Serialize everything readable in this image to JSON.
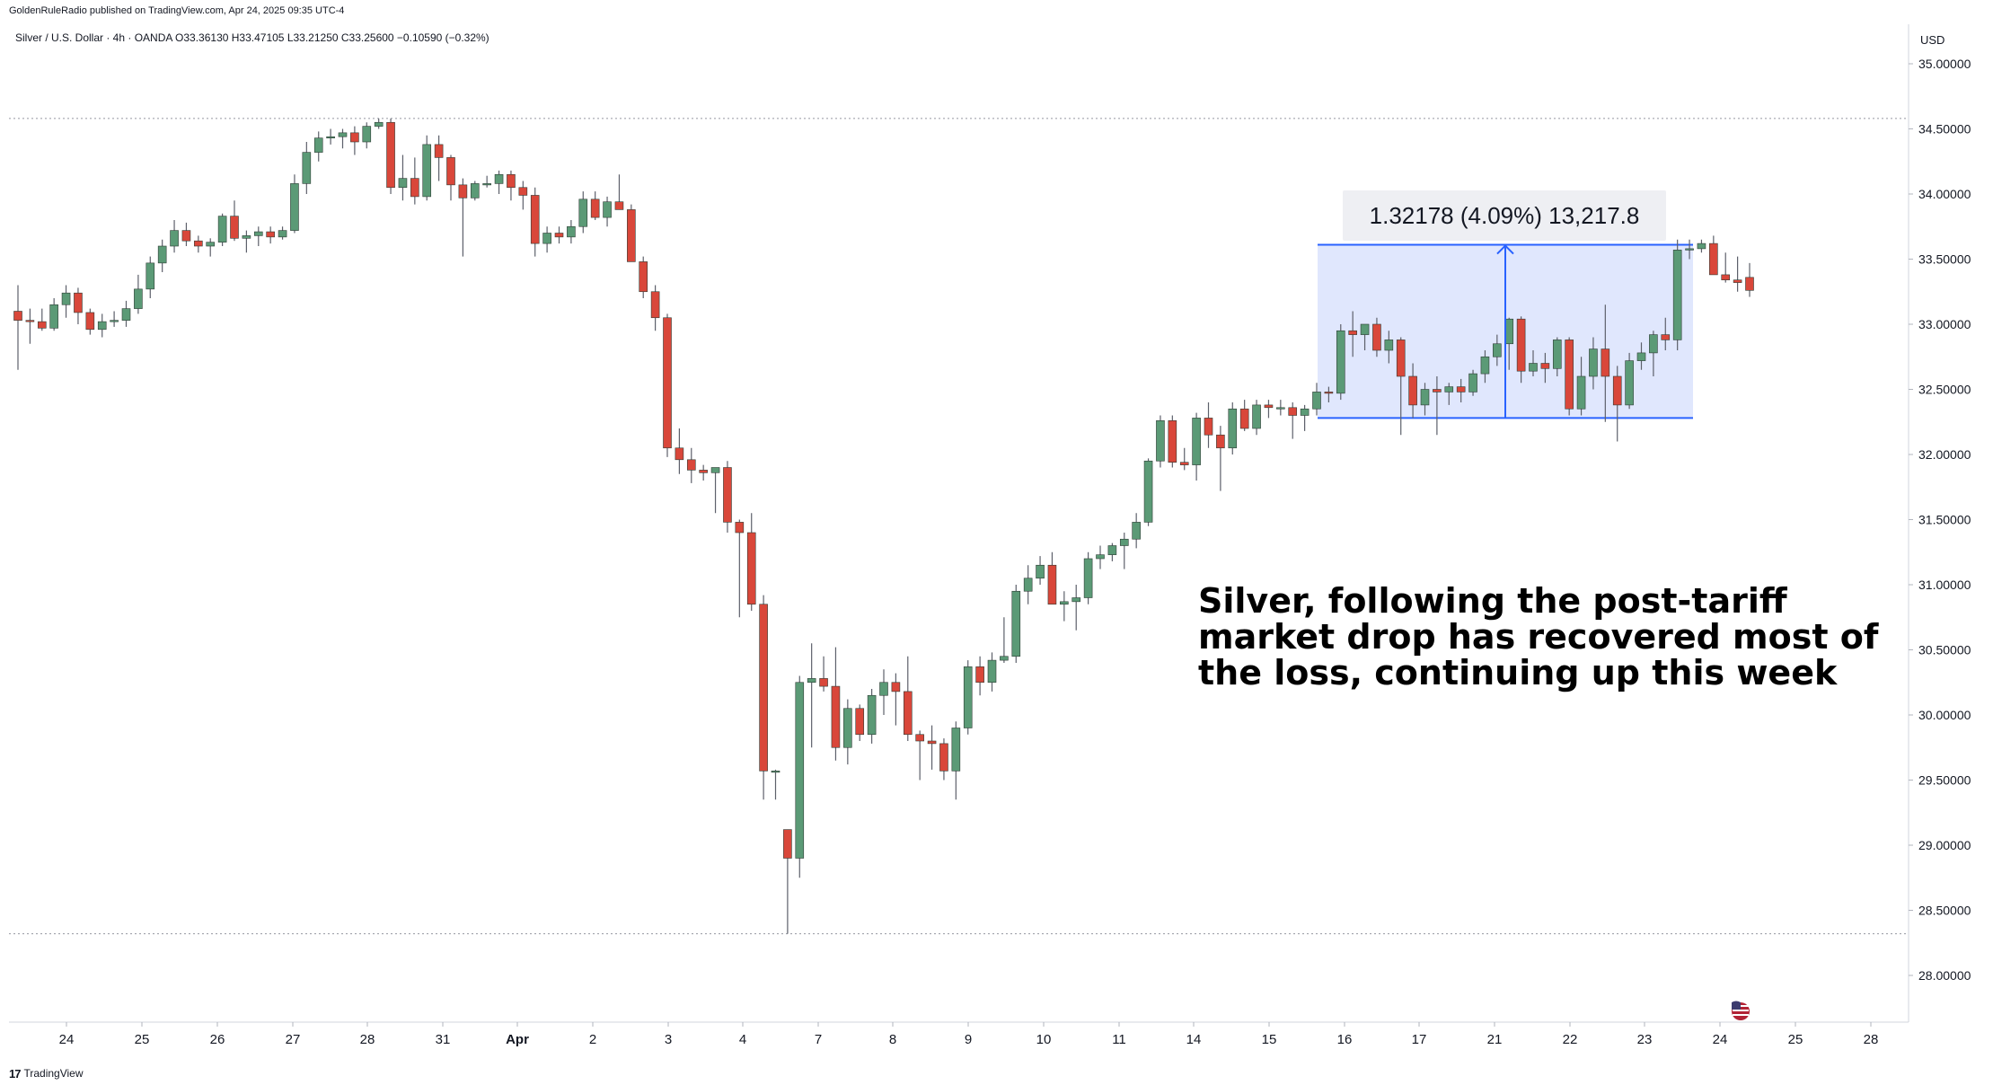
{
  "publish_note": "GoldenRuleRadio published on TradingView.com, Apr 24, 2025 09:35 UTC-4",
  "footer_brand": "TradingView",
  "footer_logo": "17",
  "symbol_line": "Silver / U.S. Dollar · 4h · OANDA  O33.36130  H33.47105  L33.21250  C33.25600  −0.10590 (−0.32%)",
  "currency": "USD",
  "colors": {
    "up": "#5b9a76",
    "down": "#d9473a",
    "wick": "#5d606b",
    "box_fill": "#dbe3fd",
    "box_line": "#2962ff",
    "grid_dotted": "#9598a1"
  },
  "icons": {
    "flag": "us-flag-icon",
    "logo": "tradingview-logo-icon"
  },
  "measure_label": "1.32178 (4.09%) 13,217.8",
  "annotation": [
    "Silver, following the post-tariff",
    "market drop has recovered most of",
    "the loss, continuing up this week"
  ],
  "chart_data": {
    "type": "candlestick",
    "title": "Silver / U.S. Dollar · 4h · OANDA",
    "ylabel": "USD",
    "ylim": [
      27.75,
      35.2
    ],
    "yticks": [
      "35.00000",
      "34.50000",
      "34.00000",
      "33.50000",
      "33.00000",
      "32.50000",
      "32.00000",
      "31.50000",
      "31.00000",
      "30.50000",
      "30.00000",
      "29.50000",
      "29.00000",
      "28.50000",
      "28.00000"
    ],
    "xticks": [
      "24",
      "25",
      "26",
      "27",
      "28",
      "31",
      "Apr",
      "2",
      "3",
      "4",
      "7",
      "8",
      "9",
      "10",
      "11",
      "14",
      "15",
      "16",
      "17",
      "21",
      "22",
      "23",
      "24",
      "25",
      "28"
    ],
    "reference_lines": [
      34.58,
      28.32
    ],
    "measure": {
      "low": 32.28,
      "high": 33.61,
      "change": 1.32178,
      "percent": 4.09,
      "ticks": 13217.8
    },
    "candles": [
      [
        33.1,
        33.3,
        32.65,
        33.03
      ],
      [
        33.03,
        33.12,
        32.85,
        33.02
      ],
      [
        33.02,
        33.12,
        32.95,
        32.97
      ],
      [
        32.97,
        33.2,
        32.95,
        33.15
      ],
      [
        33.15,
        33.3,
        33.05,
        33.24
      ],
      [
        33.24,
        33.28,
        33.0,
        33.09
      ],
      [
        33.09,
        33.12,
        32.92,
        32.96
      ],
      [
        32.96,
        33.08,
        32.9,
        33.02
      ],
      [
        33.02,
        33.1,
        32.98,
        33.03
      ],
      [
        33.03,
        33.18,
        32.98,
        33.12
      ],
      [
        33.12,
        33.38,
        33.08,
        33.27
      ],
      [
        33.27,
        33.52,
        33.2,
        33.47
      ],
      [
        33.47,
        33.65,
        33.4,
        33.6
      ],
      [
        33.6,
        33.8,
        33.55,
        33.72
      ],
      [
        33.72,
        33.78,
        33.6,
        33.64
      ],
      [
        33.64,
        33.68,
        33.55,
        33.6
      ],
      [
        33.6,
        33.66,
        33.52,
        33.63
      ],
      [
        33.63,
        33.85,
        33.6,
        33.83
      ],
      [
        33.83,
        33.95,
        33.64,
        33.66
      ],
      [
        33.66,
        33.72,
        33.55,
        33.68
      ],
      [
        33.68,
        33.75,
        33.6,
        33.71
      ],
      [
        33.71,
        33.75,
        33.62,
        33.67
      ],
      [
        33.67,
        33.75,
        33.65,
        33.72
      ],
      [
        33.72,
        34.15,
        33.7,
        34.08
      ],
      [
        34.08,
        34.4,
        34.0,
        34.32
      ],
      [
        34.32,
        34.48,
        34.25,
        34.43
      ],
      [
        34.43,
        34.5,
        34.38,
        34.44
      ],
      [
        34.44,
        34.5,
        34.35,
        34.47
      ],
      [
        34.47,
        34.52,
        34.3,
        34.4
      ],
      [
        34.4,
        34.55,
        34.35,
        34.52
      ],
      [
        34.52,
        34.58,
        34.5,
        34.55
      ],
      [
        34.55,
        34.58,
        34.0,
        34.05
      ],
      [
        34.05,
        34.3,
        33.95,
        34.12
      ],
      [
        34.12,
        34.28,
        33.92,
        33.98
      ],
      [
        33.98,
        34.45,
        33.95,
        34.38
      ],
      [
        34.38,
        34.45,
        34.1,
        34.28
      ],
      [
        34.28,
        34.3,
        33.95,
        34.07
      ],
      [
        34.07,
        34.12,
        33.52,
        33.97
      ],
      [
        33.97,
        34.1,
        33.95,
        34.08
      ],
      [
        34.08,
        34.14,
        34.05,
        34.08
      ],
      [
        34.08,
        34.18,
        34.0,
        34.15
      ],
      [
        34.15,
        34.18,
        33.95,
        34.05
      ],
      [
        34.05,
        34.1,
        33.88,
        33.99
      ],
      [
        33.99,
        34.05,
        33.52,
        33.62
      ],
      [
        33.62,
        33.75,
        33.55,
        33.7
      ],
      [
        33.7,
        33.75,
        33.62,
        33.67
      ],
      [
        33.67,
        33.8,
        33.62,
        33.75
      ],
      [
        33.75,
        34.02,
        33.7,
        33.96
      ],
      [
        33.96,
        34.02,
        33.8,
        33.82
      ],
      [
        33.82,
        33.98,
        33.75,
        33.94
      ],
      [
        33.94,
        34.15,
        33.88,
        33.88
      ],
      [
        33.88,
        33.92,
        33.55,
        33.48
      ],
      [
        33.48,
        33.52,
        33.2,
        33.25
      ],
      [
        33.25,
        33.3,
        32.95,
        33.05
      ],
      [
        33.05,
        33.08,
        31.98,
        32.05
      ],
      [
        32.05,
        32.2,
        31.85,
        31.96
      ],
      [
        31.96,
        32.05,
        31.78,
        31.88
      ],
      [
        31.88,
        31.92,
        31.8,
        31.86
      ],
      [
        31.86,
        31.9,
        31.55,
        31.9
      ],
      [
        31.9,
        31.95,
        31.4,
        31.48
      ],
      [
        31.48,
        31.5,
        30.75,
        31.4
      ],
      [
        31.4,
        31.55,
        30.8,
        30.85
      ],
      [
        30.85,
        30.92,
        29.35,
        29.57
      ],
      [
        29.57,
        29.58,
        29.35,
        29.57
      ],
      [
        29.12,
        29.12,
        28.32,
        28.9
      ],
      [
        28.9,
        30.3,
        28.75,
        30.25
      ],
      [
        30.25,
        30.55,
        29.75,
        30.28
      ],
      [
        30.28,
        30.45,
        30.18,
        30.22
      ],
      [
        30.22,
        30.52,
        29.65,
        29.75
      ],
      [
        29.75,
        30.12,
        29.62,
        30.05
      ],
      [
        30.05,
        30.08,
        29.8,
        29.85
      ],
      [
        29.85,
        30.2,
        29.78,
        30.15
      ],
      [
        30.15,
        30.35,
        30.0,
        30.25
      ],
      [
        30.25,
        30.32,
        29.92,
        30.18
      ],
      [
        30.18,
        30.45,
        29.8,
        29.85
      ],
      [
        29.85,
        29.88,
        29.5,
        29.8
      ],
      [
        29.8,
        29.92,
        29.58,
        29.78
      ],
      [
        29.78,
        29.82,
        29.5,
        29.57
      ],
      [
        29.57,
        29.95,
        29.35,
        29.9
      ],
      [
        29.9,
        30.42,
        29.85,
        30.37
      ],
      [
        30.37,
        30.45,
        30.15,
        30.25
      ],
      [
        30.25,
        30.48,
        30.18,
        30.42
      ],
      [
        30.42,
        30.75,
        30.4,
        30.45
      ],
      [
        30.45,
        31.0,
        30.4,
        30.95
      ],
      [
        30.95,
        31.15,
        30.85,
        31.05
      ],
      [
        31.05,
        31.22,
        31.0,
        31.15
      ],
      [
        31.15,
        31.25,
        30.85,
        30.85
      ],
      [
        30.85,
        30.95,
        30.72,
        30.87
      ],
      [
        30.87,
        31.0,
        30.65,
        30.9
      ],
      [
        30.9,
        31.25,
        30.85,
        31.2
      ],
      [
        31.2,
        31.3,
        31.12,
        31.23
      ],
      [
        31.23,
        31.32,
        31.18,
        31.3
      ],
      [
        31.3,
        31.4,
        31.12,
        31.35
      ],
      [
        31.35,
        31.55,
        31.28,
        31.48
      ],
      [
        31.48,
        31.97,
        31.45,
        31.95
      ],
      [
        31.95,
        32.3,
        31.9,
        32.26
      ],
      [
        32.26,
        32.3,
        31.9,
        31.94
      ],
      [
        31.94,
        32.05,
        31.88,
        31.92
      ],
      [
        31.92,
        32.32,
        31.8,
        32.28
      ],
      [
        32.28,
        32.4,
        32.05,
        32.15
      ],
      [
        32.15,
        32.22,
        31.72,
        32.05
      ],
      [
        32.05,
        32.4,
        32.0,
        32.35
      ],
      [
        32.35,
        32.42,
        32.18,
        32.2
      ],
      [
        32.2,
        32.42,
        32.15,
        32.38
      ],
      [
        32.38,
        32.42,
        32.28,
        32.36
      ],
      [
        32.36,
        32.42,
        32.3,
        32.36
      ],
      [
        32.36,
        32.4,
        32.12,
        32.3
      ],
      [
        32.3,
        32.38,
        32.18,
        32.35
      ],
      [
        32.35,
        32.55,
        32.3,
        32.48
      ],
      [
        32.48,
        32.52,
        32.4,
        32.47
      ],
      [
        32.47,
        33.0,
        32.42,
        32.95
      ],
      [
        32.95,
        33.1,
        32.75,
        32.92
      ],
      [
        32.92,
        33.0,
        32.8,
        33.0
      ],
      [
        33.0,
        33.05,
        32.75,
        32.8
      ],
      [
        32.8,
        32.95,
        32.7,
        32.88
      ],
      [
        32.88,
        32.9,
        32.15,
        32.6
      ],
      [
        32.6,
        32.7,
        32.28,
        32.38
      ],
      [
        32.38,
        32.55,
        32.3,
        32.5
      ],
      [
        32.5,
        32.6,
        32.15,
        32.48
      ],
      [
        32.48,
        32.55,
        32.38,
        32.52
      ],
      [
        32.52,
        32.58,
        32.4,
        32.48
      ],
      [
        32.48,
        32.65,
        32.45,
        32.62
      ],
      [
        32.62,
        32.8,
        32.55,
        32.75
      ],
      [
        32.75,
        32.92,
        32.68,
        32.85
      ],
      [
        32.85,
        33.05,
        32.65,
        33.04
      ],
      [
        33.04,
        33.06,
        32.55,
        32.64
      ],
      [
        32.64,
        32.8,
        32.6,
        32.7
      ],
      [
        32.7,
        32.78,
        32.55,
        32.66
      ],
      [
        32.66,
        32.9,
        32.6,
        32.88
      ],
      [
        32.88,
        32.9,
        32.3,
        32.35
      ],
      [
        32.35,
        32.75,
        32.3,
        32.6
      ],
      [
        32.6,
        32.9,
        32.5,
        32.81
      ],
      [
        32.81,
        33.15,
        32.25,
        32.6
      ],
      [
        32.6,
        32.68,
        32.1,
        32.38
      ],
      [
        32.38,
        32.78,
        32.35,
        32.72
      ],
      [
        32.72,
        32.86,
        32.65,
        32.78
      ],
      [
        32.78,
        32.95,
        32.6,
        32.92
      ],
      [
        32.92,
        33.05,
        32.8,
        32.88
      ],
      [
        32.88,
        33.65,
        32.8,
        33.57
      ],
      [
        33.57,
        33.65,
        33.5,
        33.58
      ],
      [
        33.58,
        33.65,
        33.55,
        33.62
      ],
      [
        33.62,
        33.68,
        33.4,
        33.38
      ],
      [
        33.38,
        33.55,
        33.32,
        33.34
      ],
      [
        33.34,
        33.52,
        33.25,
        33.32
      ],
      [
        33.36,
        33.47,
        33.21,
        33.26
      ]
    ]
  }
}
